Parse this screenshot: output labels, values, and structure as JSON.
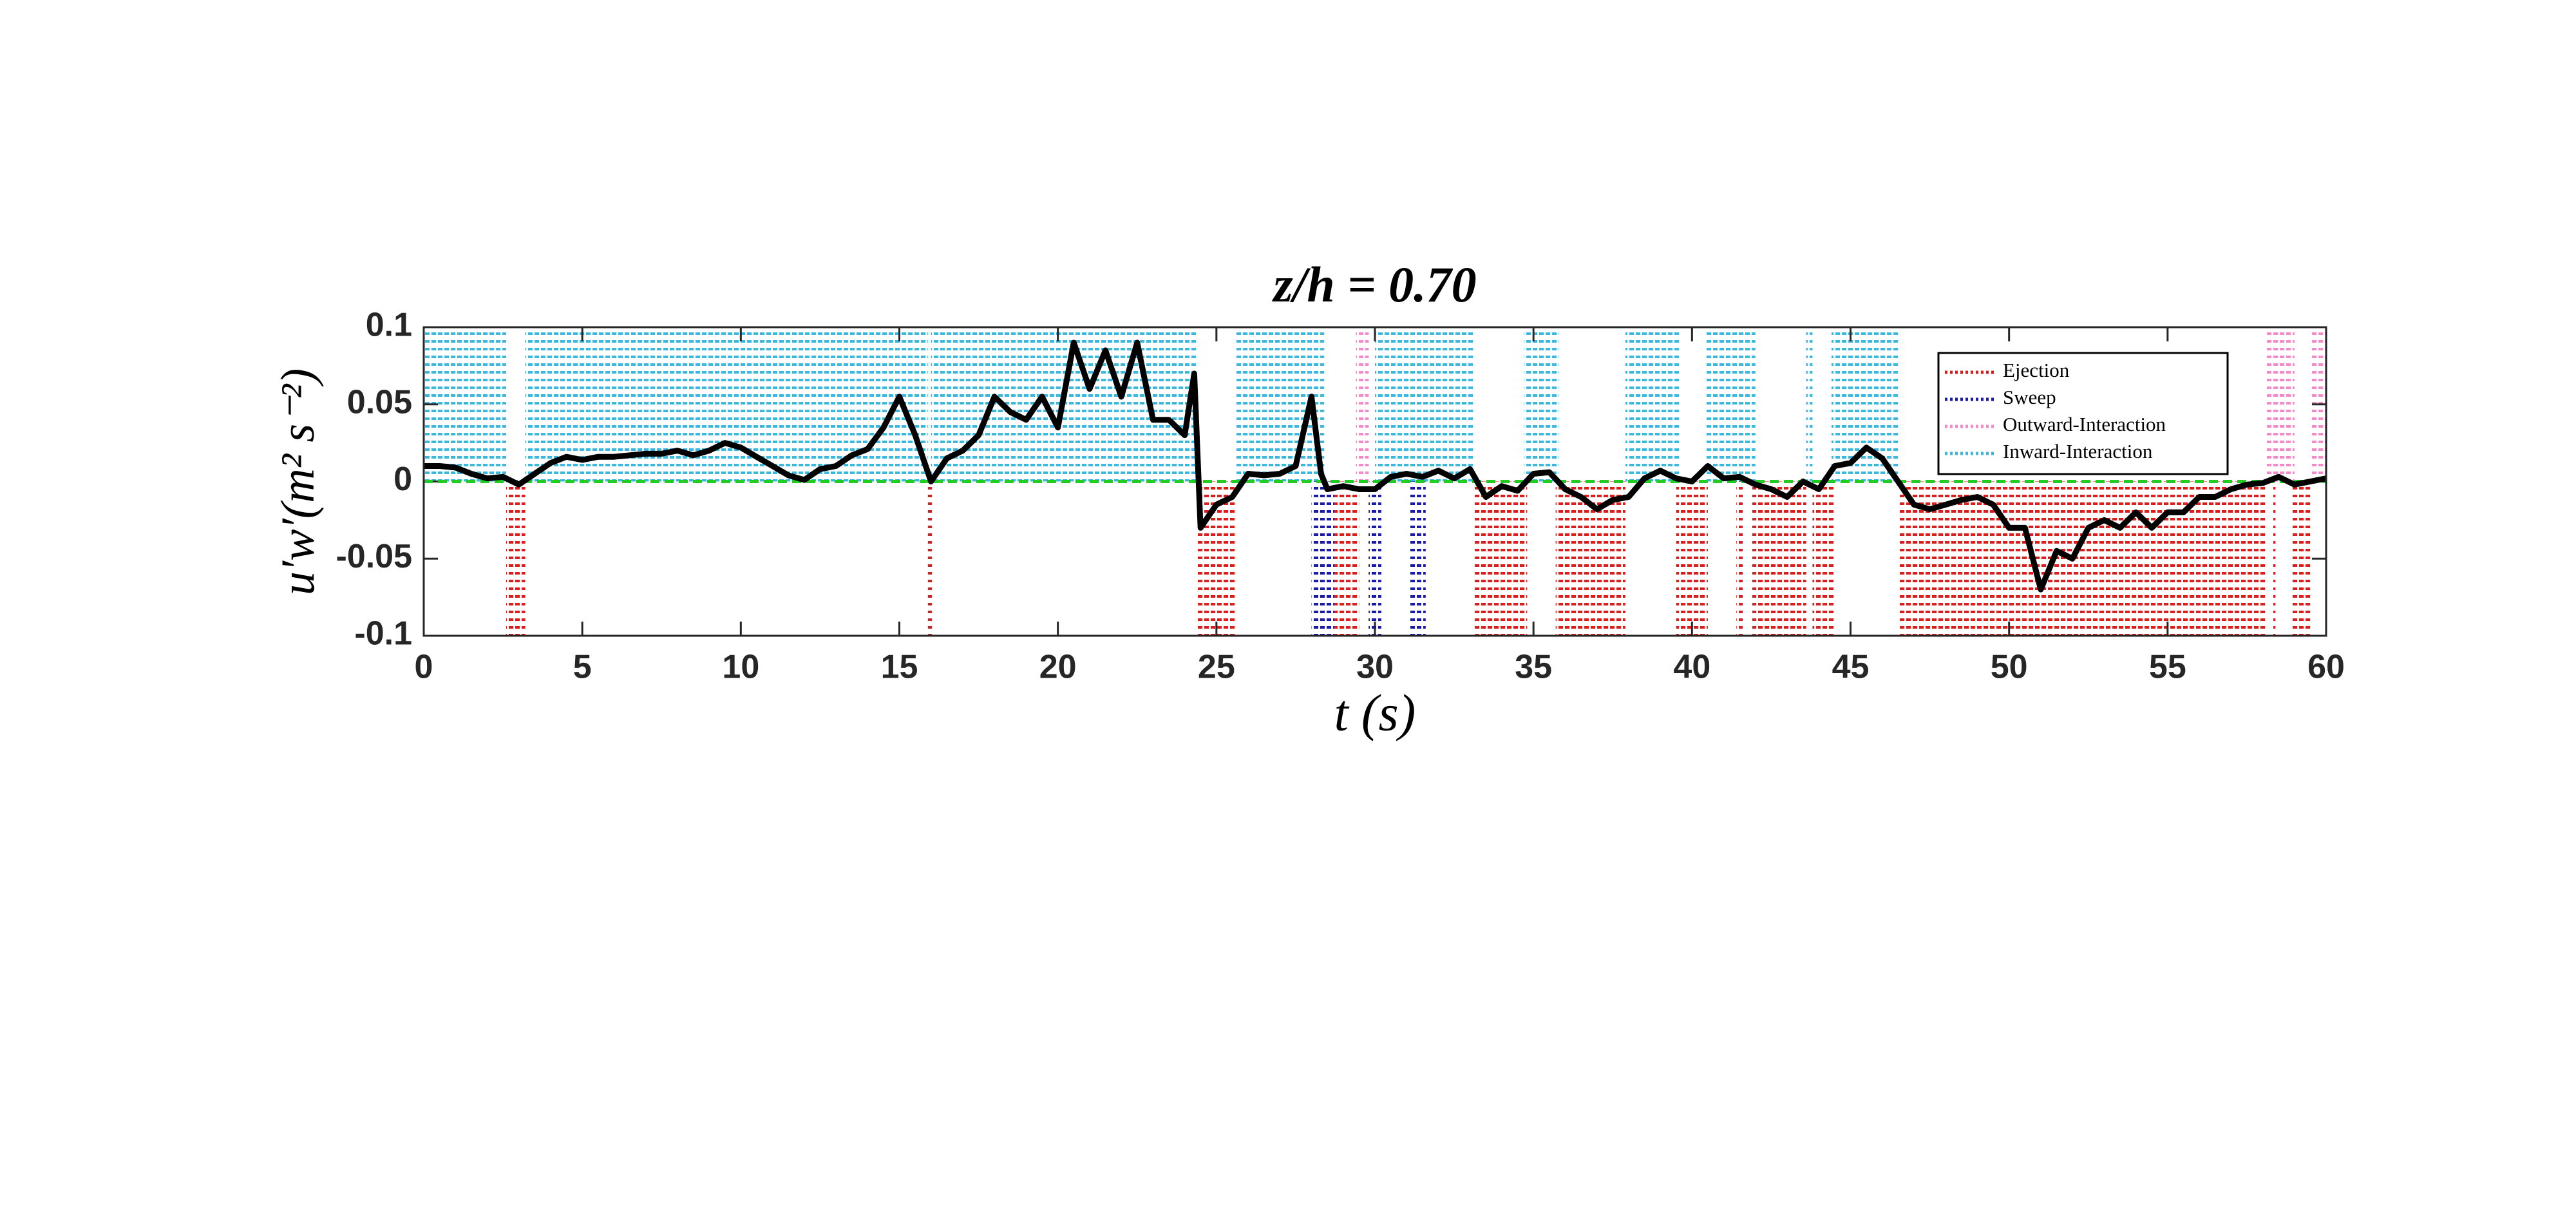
{
  "chart_data": {
    "type": "line",
    "title": "z/h = 0.70",
    "xlabel": "t (s)",
    "ylabel": "u′w′(m² s⁻²)",
    "xlim": [
      0,
      60
    ],
    "ylim": [
      -0.1,
      0.1
    ],
    "xticks": [
      0,
      5,
      10,
      15,
      20,
      25,
      30,
      35,
      40,
      45,
      50,
      55,
      60
    ],
    "yticks": [
      0.1,
      0.05,
      0,
      -0.05,
      -0.1
    ],
    "color": "#000000",
    "hline": {
      "value": 0,
      "color": "#22cc22"
    },
    "legend": "upper right",
    "x": [
      0,
      0.5,
      1,
      1.5,
      2,
      2.5,
      3,
      3.5,
      4,
      4.5,
      5,
      5.5,
      6,
      6.5,
      7,
      7.5,
      8,
      8.5,
      9,
      9.5,
      10,
      10.5,
      11,
      11.5,
      12,
      12.5,
      13,
      13.5,
      14,
      14.5,
      15,
      15.5,
      16,
      16.5,
      17,
      17.5,
      18,
      18.5,
      19,
      19.5,
      20,
      20.5,
      21,
      21.5,
      22,
      22.5,
      23,
      23.5,
      24,
      24.3,
      24.5,
      25,
      25.5,
      26,
      26.5,
      27,
      27.5,
      28,
      28.3,
      28.5,
      29,
      29.5,
      30,
      30.5,
      31,
      31.5,
      32,
      32.5,
      33,
      33.5,
      34,
      34.5,
      35,
      35.5,
      36,
      36.5,
      37,
      37.5,
      38,
      38.5,
      39,
      39.5,
      40,
      40.5,
      41,
      41.5,
      42,
      42.5,
      43,
      43.5,
      44,
      44.5,
      45,
      45.5,
      46,
      46.5,
      47,
      47.5,
      48,
      48.5,
      49,
      49.5,
      50,
      50.5,
      51,
      51.5,
      52,
      52.5,
      53,
      53.5,
      54,
      54.5,
      55,
      55.5,
      56,
      56.5,
      57,
      57.5,
      58,
      58.5,
      59,
      59.5,
      60
    ],
    "values": [
      0.01,
      0.01,
      0.009,
      0.005,
      0.002,
      0.003,
      -0.002,
      0.005,
      0.012,
      0.016,
      0.014,
      0.016,
      0.016,
      0.017,
      0.018,
      0.018,
      0.02,
      0.017,
      0.02,
      0.025,
      0.022,
      0.016,
      0.01,
      0.004,
      0.001,
      0.008,
      0.01,
      0.017,
      0.021,
      0.035,
      0.055,
      0.03,
      0.0,
      0.015,
      0.02,
      0.03,
      0.055,
      0.045,
      0.04,
      0.055,
      0.035,
      0.09,
      0.06,
      0.085,
      0.055,
      0.09,
      0.04,
      0.04,
      0.03,
      0.07,
      -0.03,
      -0.015,
      -0.01,
      0.005,
      0.004,
      0.005,
      0.01,
      0.055,
      0.005,
      -0.005,
      -0.003,
      -0.005,
      -0.005,
      0.003,
      0.005,
      0.003,
      0.007,
      0.002,
      0.008,
      -0.01,
      -0.003,
      -0.006,
      0.005,
      0.006,
      -0.005,
      -0.01,
      -0.018,
      -0.012,
      -0.01,
      0.002,
      0.007,
      0.002,
      0.0,
      0.01,
      0.002,
      0.003,
      -0.002,
      -0.005,
      -0.01,
      0.0,
      -0.005,
      0.01,
      0.012,
      0.022,
      0.015,
      0.0,
      -0.015,
      -0.018,
      -0.015,
      -0.012,
      -0.01,
      -0.015,
      -0.03,
      -0.03,
      -0.07,
      -0.045,
      -0.05,
      -0.03,
      -0.025,
      -0.03,
      -0.02,
      -0.03,
      -0.02,
      -0.02,
      -0.01,
      -0.01,
      -0.005,
      -0.002,
      -0.001,
      0.003,
      -0.002,
      0.0,
      0.002
    ],
    "regions": [
      {
        "name": "Ejection",
        "color": "#d62020",
        "side": "lower",
        "intervals": [
          [
            2.6,
            3.2
          ],
          [
            15.9,
            16.05
          ],
          [
            24.4,
            25.6
          ],
          [
            28.7,
            29.5
          ],
          [
            33.1,
            34.8
          ],
          [
            35.7,
            37.9
          ],
          [
            39.5,
            40.5
          ],
          [
            41.4,
            41.6
          ],
          [
            41.9,
            43.6
          ],
          [
            43.8,
            44.5
          ],
          [
            46.5,
            58.1
          ],
          [
            58.3,
            58.4
          ],
          [
            58.9,
            59.5
          ]
        ]
      },
      {
        "name": "Sweep",
        "color": "#1a1aaa",
        "side": "lower",
        "intervals": [
          [
            28.0,
            28.7
          ],
          [
            29.8,
            30.2
          ],
          [
            31.1,
            31.6
          ]
        ]
      },
      {
        "name": "Outward-Interaction",
        "color": "#f08cc8",
        "side": "upper",
        "intervals": [
          [
            29.4,
            29.8
          ],
          [
            58.1,
            59.0
          ],
          [
            59.5,
            60
          ]
        ]
      },
      {
        "name": "Inward-Interaction",
        "color": "#3fb6da",
        "side": "upper",
        "intervals": [
          [
            0,
            2.6
          ],
          [
            3.2,
            15.9
          ],
          [
            16.0,
            24.4
          ],
          [
            25.6,
            28.4
          ],
          [
            30.0,
            33.1
          ],
          [
            34.7,
            35.8
          ],
          [
            37.9,
            39.6
          ],
          [
            40.4,
            42.0
          ],
          [
            43.6,
            43.8
          ],
          [
            44.4,
            46.5
          ]
        ]
      }
    ]
  }
}
